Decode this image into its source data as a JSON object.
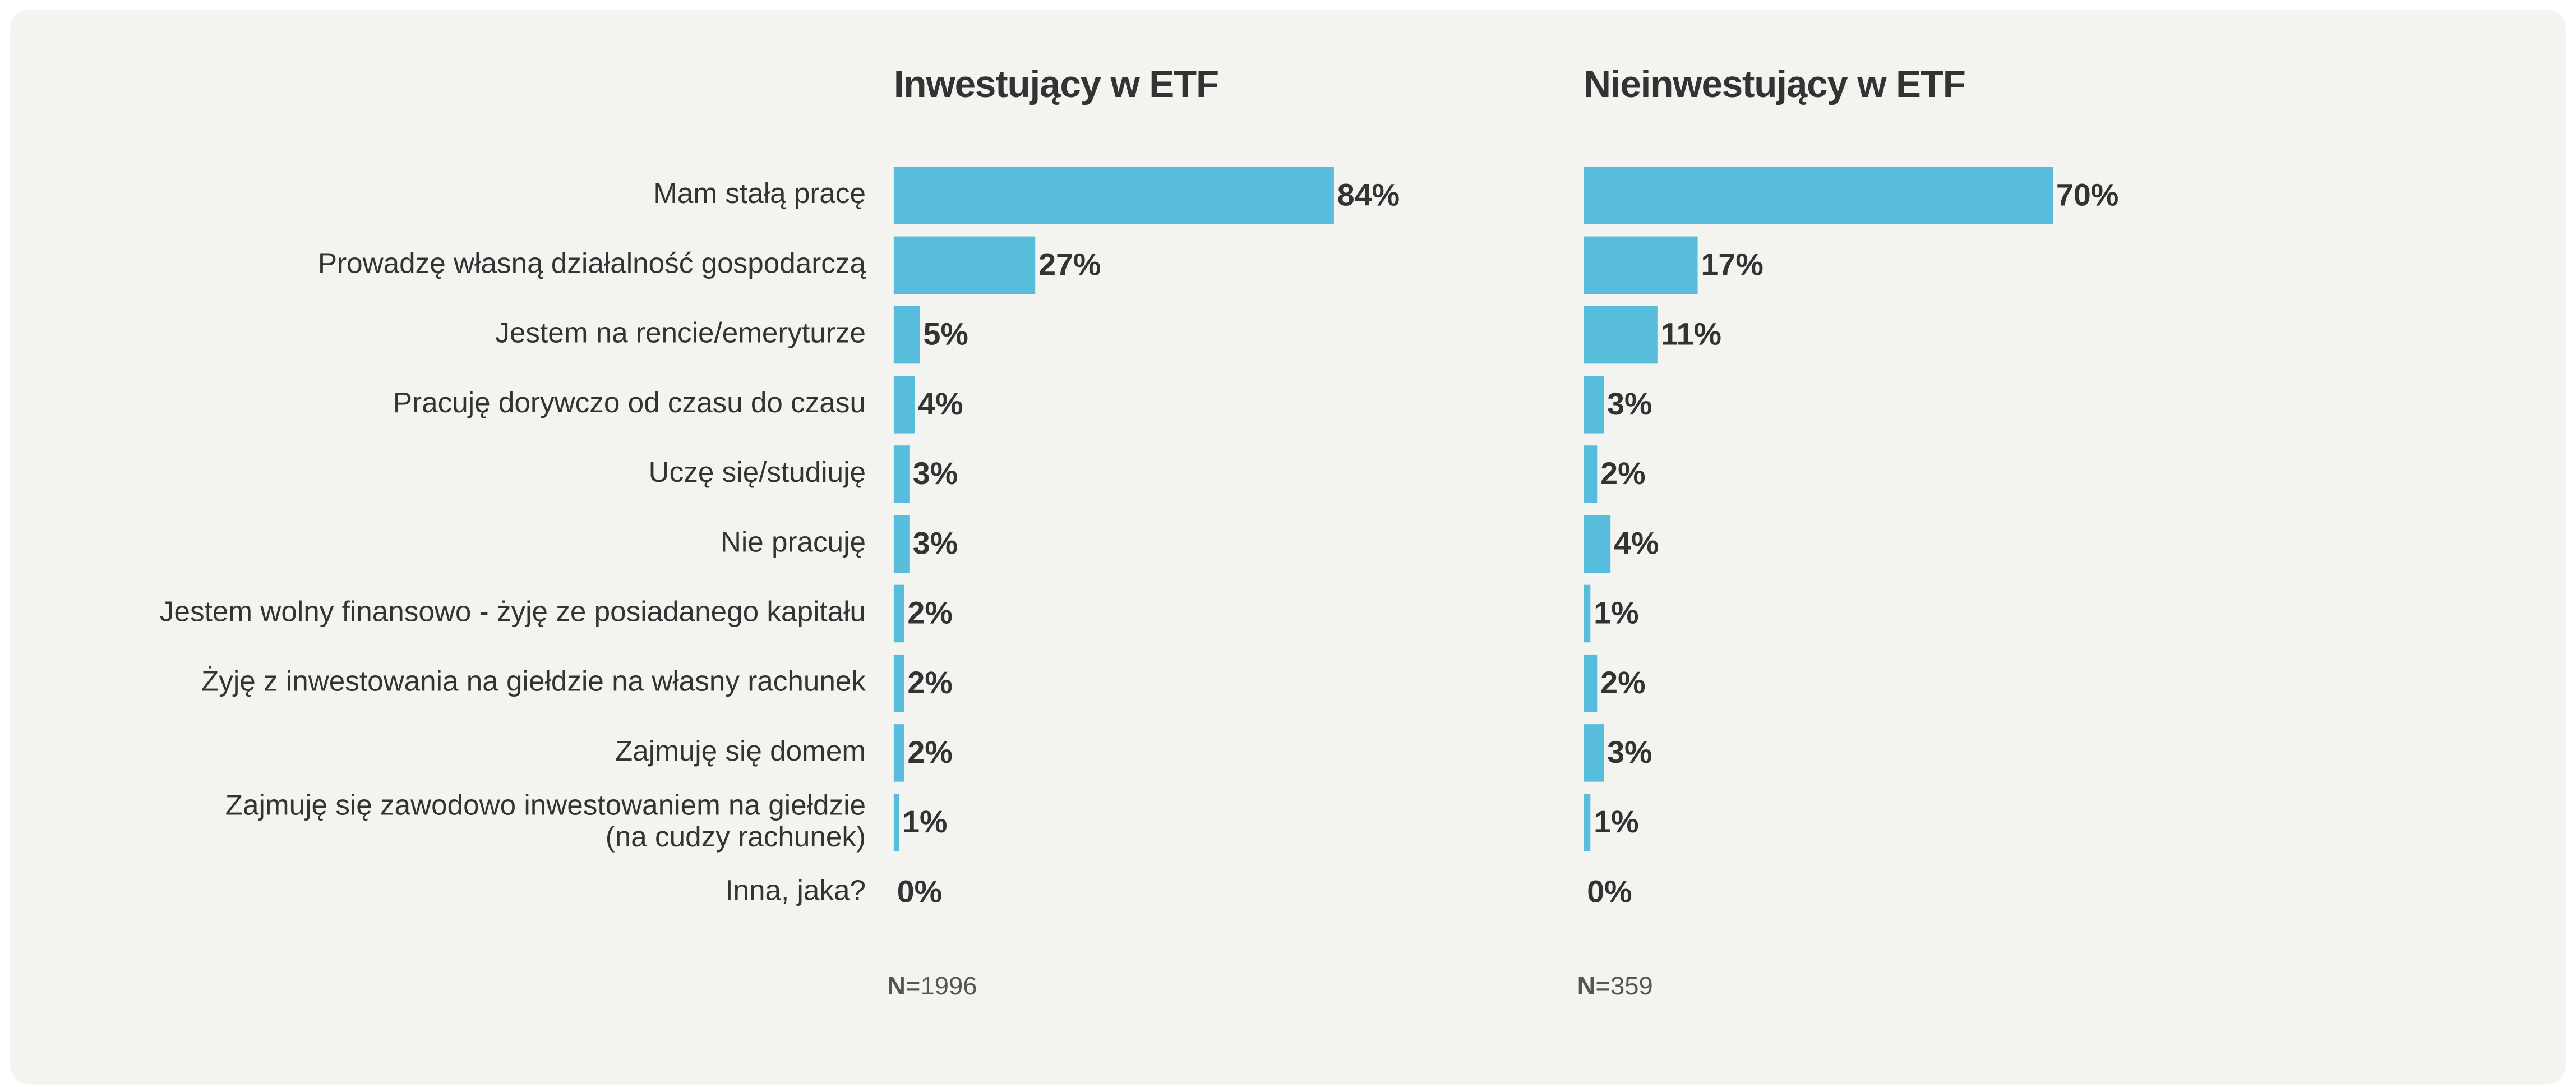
{
  "chart_data": [
    {
      "type": "hbar",
      "title": "Inwestujący w ETF",
      "color": "#58bddd",
      "categories": [
        "Mam stałą pracę",
        "Prowadzę własną działalność gospodarczą",
        "Jestem na rencie/emeryturze",
        "Pracuję dorywczo od czasu do czasu",
        "Uczę się/studiuję",
        "Nie pracuję",
        "Jestem wolny finansowo - żyję ze posiadanego kapitału",
        "Żyję z inwestowania na giełdzie na własny rachunek",
        "Zajmuję się domem",
        "Zajmuję się zawodowo inwestowaniem na giełdzie\n(na cudzy rachunek)",
        "Inna, jaka?"
      ],
      "values": [
        84,
        27,
        5,
        4,
        3,
        3,
        2,
        2,
        2,
        1,
        0
      ],
      "value_labels": [
        "84%",
        "27%",
        "5%",
        "4%",
        "3%",
        "3%",
        "2%",
        "2%",
        "2%",
        "1%",
        "0%"
      ],
      "xlim": [
        0,
        100
      ],
      "sample_label": "N",
      "sample_value": "=1996"
    },
    {
      "type": "hbar",
      "title": "Nieinwestujący w ETF",
      "color": "#58bddd",
      "values": [
        70,
        17,
        11,
        3,
        2,
        4,
        1,
        2,
        3,
        1,
        0
      ],
      "value_labels": [
        "70%",
        "17%",
        "11%",
        "3%",
        "2%",
        "4%",
        "1%",
        "2%",
        "3%",
        "1%",
        "0%"
      ],
      "xlim": [
        0,
        100
      ],
      "sample_label": "N",
      "sample_value": "=359"
    }
  ]
}
